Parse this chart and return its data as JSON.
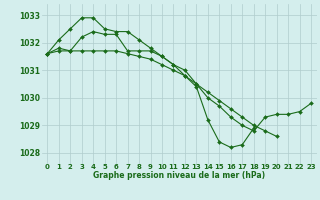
{
  "background_color": "#d4eeed",
  "grid_color": "#b0cccc",
  "line_color": "#1a6b1a",
  "marker_color": "#1a6b1a",
  "xlabel": "Graphe pression niveau de la mer (hPa)",
  "xlabel_color": "#1a6b1a",
  "x_ticks": [
    0,
    1,
    2,
    3,
    4,
    5,
    6,
    7,
    8,
    9,
    10,
    11,
    12,
    13,
    14,
    15,
    16,
    17,
    18,
    19,
    20,
    21,
    22,
    23
  ],
  "ylim": [
    1027.6,
    1033.4
  ],
  "yticks": [
    1028,
    1029,
    1030,
    1031,
    1032,
    1033
  ],
  "series": [
    [
      1031.6,
      1031.8,
      1031.7,
      1032.2,
      1032.4,
      1032.3,
      1032.3,
      1031.7,
      1031.7,
      1031.7,
      1031.5,
      1031.2,
      1031.0,
      1030.5,
      1030.0,
      1029.7,
      1029.3,
      1029.0,
      1028.8,
      1029.3,
      1029.4,
      1029.4,
      1029.5,
      1029.8
    ],
    [
      1031.6,
      1032.1,
      1032.5,
      1032.9,
      1032.9,
      1032.5,
      1032.4,
      1032.4,
      1032.1,
      1031.8,
      1031.5,
      1031.2,
      1030.8,
      1030.4,
      1029.2,
      1028.4,
      1028.2,
      1028.3,
      1028.9,
      null,
      null,
      null,
      null,
      null
    ],
    [
      1031.6,
      1031.7,
      1031.7,
      1031.7,
      1031.7,
      1031.7,
      1031.7,
      1031.6,
      1031.5,
      1031.4,
      1031.2,
      1031.0,
      1030.8,
      1030.5,
      1030.2,
      1029.9,
      1029.6,
      1029.3,
      1029.0,
      1028.8,
      1028.6,
      null,
      null,
      null
    ]
  ]
}
